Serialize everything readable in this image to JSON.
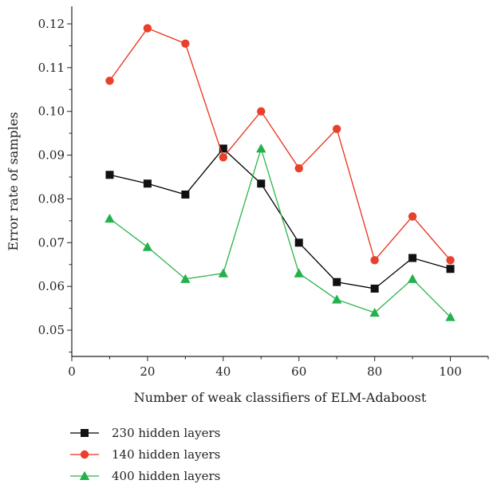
{
  "chart_data": {
    "type": "line",
    "title": "",
    "xlabel": "Number of weak classifiers of ELM-Adaboost",
    "ylabel": "Error rate of samples",
    "xlim": [
      0,
      110
    ],
    "ylim": [
      0.044,
      0.124
    ],
    "xticks": [
      0,
      20,
      40,
      60,
      80,
      100
    ],
    "yticks": [
      0.05,
      0.06,
      0.07,
      0.08,
      0.09,
      0.1,
      0.11,
      0.12
    ],
    "ytick_labels": [
      "0.05",
      "0.06",
      "0.07",
      "0.08",
      "0.09",
      "0.10",
      "0.11",
      "0.12"
    ],
    "grid": false,
    "legend_position": "bottom-left, below plot",
    "x": [
      10,
      20,
      30,
      40,
      50,
      60,
      70,
      80,
      90,
      100
    ],
    "series": [
      {
        "name": "230 hidden layers",
        "color": "#000000",
        "marker": "square",
        "marker_color": "#111111",
        "values": [
          0.0855,
          0.0835,
          0.081,
          0.0915,
          0.0835,
          0.07,
          0.061,
          0.0595,
          0.0665,
          0.064
        ]
      },
      {
        "name": "140 hidden layers",
        "color": "#e8301a",
        "marker": "circle",
        "marker_color": "#e8402a",
        "values": [
          0.107,
          0.119,
          0.1155,
          0.0895,
          0.1,
          0.087,
          0.096,
          0.066,
          0.076,
          0.066
        ]
      },
      {
        "name": "400 hidden layers",
        "color": "#2db34a",
        "marker": "triangle",
        "marker_color": "#22b14c",
        "values": [
          0.0755,
          0.069,
          0.0617,
          0.063,
          0.0915,
          0.063,
          0.057,
          0.054,
          0.0617,
          0.053
        ]
      }
    ]
  }
}
